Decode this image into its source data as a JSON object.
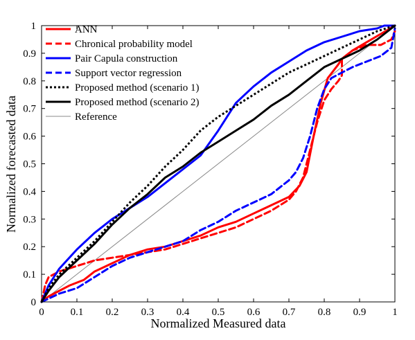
{
  "chart_data": {
    "type": "line",
    "xlabel": "Normalized Measured data",
    "ylabel": "Normalized forecasted data",
    "xlim": [
      0,
      1
    ],
    "ylim": [
      0,
      1
    ],
    "xticks": [
      0,
      0.1,
      0.2,
      0.3,
      0.4,
      0.5,
      0.6,
      0.7,
      0.8,
      0.9,
      1
    ],
    "yticks": [
      0,
      0.1,
      0.2,
      0.3,
      0.4,
      0.5,
      0.6,
      0.7,
      0.8,
      0.9,
      1
    ],
    "xtick_labels": [
      "0",
      "0.1",
      "0.2",
      "0.3",
      "0.4",
      "0.5",
      "0.6",
      "0.7",
      "0.8",
      "0.9",
      "1"
    ],
    "ytick_labels": [
      "0",
      "0.1",
      "0.2",
      "0.3",
      "0.4",
      "0.5",
      "0.6",
      "0.7",
      "0.8",
      "0.9",
      "1"
    ],
    "grid": false,
    "legend_position": "top-left",
    "series": [
      {
        "name": "ANN",
        "color": "#ff0000",
        "style": "solid",
        "width": 3,
        "x": [
          0,
          0.02,
          0.05,
          0.08,
          0.12,
          0.15,
          0.2,
          0.25,
          0.3,
          0.35,
          0.4,
          0.45,
          0.5,
          0.55,
          0.6,
          0.65,
          0.7,
          0.73,
          0.75,
          0.77,
          0.79,
          0.81,
          0.84,
          0.85,
          0.88,
          0.92,
          0.96,
          1
        ],
        "y": [
          0,
          0.02,
          0.04,
          0.06,
          0.08,
          0.11,
          0.14,
          0.17,
          0.19,
          0.2,
          0.22,
          0.24,
          0.27,
          0.29,
          0.32,
          0.35,
          0.38,
          0.42,
          0.47,
          0.6,
          0.72,
          0.81,
          0.86,
          0.88,
          0.91,
          0.94,
          0.97,
          1
        ]
      },
      {
        "name": "Chronical probability model",
        "color": "#ff0000",
        "style": "dashed",
        "width": 3,
        "x": [
          0,
          0.01,
          0.02,
          0.05,
          0.1,
          0.15,
          0.2,
          0.25,
          0.3,
          0.35,
          0.4,
          0.45,
          0.5,
          0.55,
          0.6,
          0.65,
          0.7,
          0.72,
          0.74,
          0.76,
          0.78,
          0.8,
          0.82,
          0.84,
          0.85,
          0.85,
          0.88,
          0.92,
          0.96,
          0.99,
          1
        ],
        "y": [
          0,
          0.06,
          0.09,
          0.11,
          0.13,
          0.15,
          0.16,
          0.17,
          0.18,
          0.19,
          0.21,
          0.23,
          0.25,
          0.27,
          0.3,
          0.33,
          0.37,
          0.4,
          0.45,
          0.55,
          0.65,
          0.73,
          0.77,
          0.8,
          0.82,
          0.88,
          0.91,
          0.93,
          0.93,
          0.95,
          0.98
        ]
      },
      {
        "name": "Pair Capula construction",
        "color": "#0000ff",
        "style": "solid",
        "width": 3,
        "x": [
          0,
          0.02,
          0.05,
          0.1,
          0.15,
          0.2,
          0.25,
          0.3,
          0.35,
          0.4,
          0.45,
          0.5,
          0.55,
          0.6,
          0.65,
          0.7,
          0.75,
          0.8,
          0.85,
          0.9,
          0.95,
          0.97,
          1
        ],
        "y": [
          0,
          0.06,
          0.12,
          0.19,
          0.25,
          0.3,
          0.34,
          0.38,
          0.43,
          0.48,
          0.53,
          0.62,
          0.72,
          0.78,
          0.83,
          0.87,
          0.91,
          0.94,
          0.96,
          0.98,
          0.99,
          1,
          1
        ]
      },
      {
        "name": "Support vector regression",
        "color": "#0000ff",
        "style": "dashed",
        "width": 3,
        "x": [
          0,
          0.05,
          0.1,
          0.15,
          0.2,
          0.25,
          0.3,
          0.35,
          0.4,
          0.45,
          0.5,
          0.55,
          0.6,
          0.65,
          0.7,
          0.72,
          0.74,
          0.76,
          0.78,
          0.8,
          0.82,
          0.85,
          0.88,
          0.92,
          0.96,
          0.99,
          1
        ],
        "y": [
          0,
          0.03,
          0.05,
          0.09,
          0.13,
          0.16,
          0.18,
          0.2,
          0.22,
          0.26,
          0.29,
          0.33,
          0.36,
          0.39,
          0.44,
          0.47,
          0.52,
          0.6,
          0.7,
          0.77,
          0.81,
          0.83,
          0.85,
          0.87,
          0.89,
          0.92,
          0.99
        ]
      },
      {
        "name": "Proposed method (scenario 1)",
        "color": "#000000",
        "style": "dotted",
        "width": 3,
        "x": [
          0,
          0.02,
          0.05,
          0.1,
          0.15,
          0.2,
          0.25,
          0.3,
          0.35,
          0.4,
          0.45,
          0.5,
          0.55,
          0.6,
          0.65,
          0.7,
          0.75,
          0.8,
          0.85,
          0.9,
          0.95,
          1
        ],
        "y": [
          0,
          0.05,
          0.1,
          0.16,
          0.22,
          0.29,
          0.36,
          0.42,
          0.49,
          0.55,
          0.62,
          0.67,
          0.71,
          0.75,
          0.79,
          0.83,
          0.86,
          0.89,
          0.92,
          0.95,
          0.98,
          1
        ]
      },
      {
        "name": "Proposed method (scenario 2)",
        "color": "#000000",
        "style": "solid",
        "width": 3,
        "x": [
          0,
          0.02,
          0.05,
          0.1,
          0.15,
          0.2,
          0.25,
          0.3,
          0.35,
          0.4,
          0.45,
          0.5,
          0.55,
          0.6,
          0.65,
          0.7,
          0.75,
          0.8,
          0.85,
          0.9,
          0.95,
          1
        ],
        "y": [
          0,
          0.04,
          0.09,
          0.15,
          0.21,
          0.28,
          0.34,
          0.39,
          0.45,
          0.49,
          0.54,
          0.58,
          0.62,
          0.66,
          0.71,
          0.75,
          0.8,
          0.85,
          0.88,
          0.91,
          0.95,
          1
        ]
      },
      {
        "name": "Reference",
        "color": "#888888",
        "style": "solid",
        "width": 1,
        "x": [
          0,
          1
        ],
        "y": [
          0,
          1
        ]
      }
    ]
  }
}
